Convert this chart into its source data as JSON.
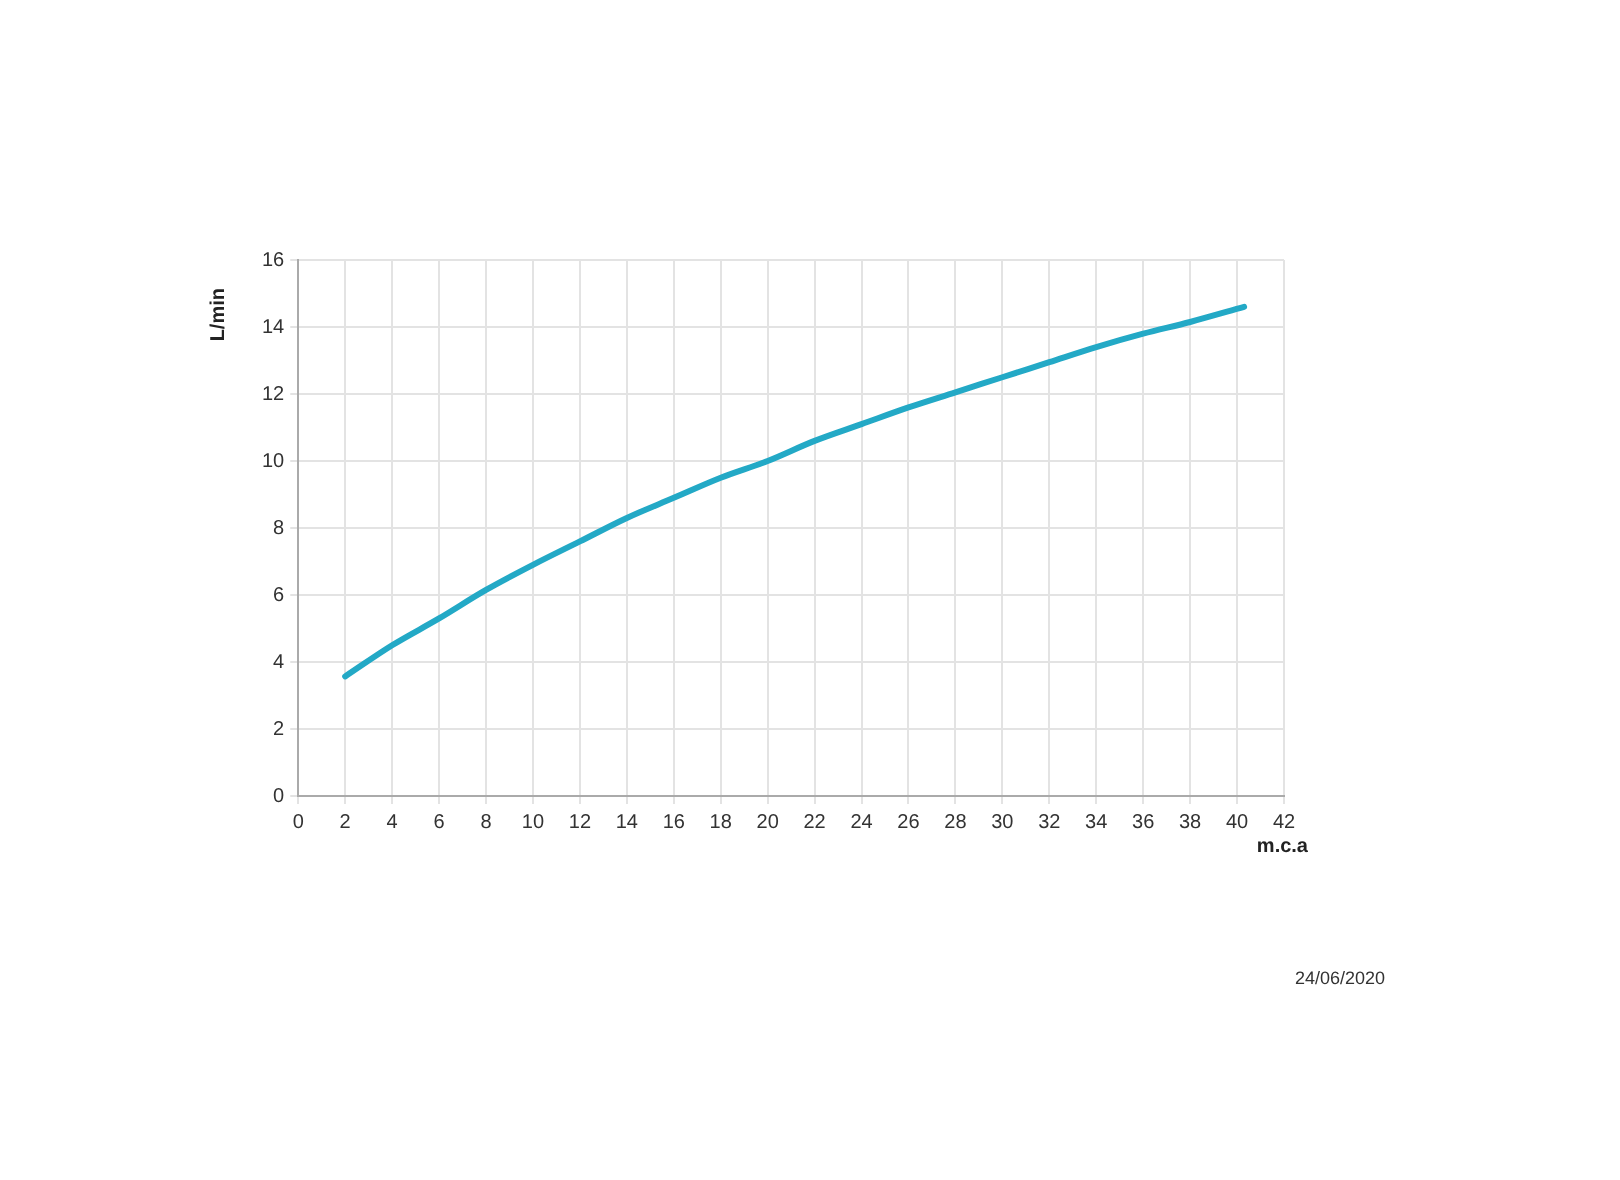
{
  "chart_data": {
    "type": "line",
    "xlabel": "m.c.a",
    "ylabel": "L/min",
    "series": [
      {
        "color": "#23a9c6",
        "x": [
          2,
          4,
          6,
          8,
          10,
          12,
          14,
          16,
          18,
          20,
          22,
          24,
          26,
          28,
          30,
          32,
          34,
          36,
          38,
          40.3
        ],
        "values": [
          3.57,
          4.5,
          5.3,
          6.15,
          6.9,
          7.6,
          8.3,
          8.9,
          9.5,
          10.0,
          10.6,
          11.1,
          11.6,
          12.05,
          12.5,
          12.95,
          13.4,
          13.8,
          14.15,
          14.6
        ]
      }
    ],
    "xlim": [
      0,
      42
    ],
    "xticks": [
      0,
      2,
      4,
      6,
      8,
      10,
      12,
      14,
      16,
      18,
      20,
      22,
      24,
      26,
      28,
      30,
      32,
      34,
      36,
      38,
      40,
      42
    ],
    "ylim": [
      0,
      16
    ],
    "yticks": [
      0,
      2,
      4,
      6,
      8,
      10,
      12,
      14,
      16
    ],
    "grid": true,
    "legend": false,
    "marker": "none",
    "line_style": "solid",
    "annotations": [
      "24/06/2020"
    ]
  }
}
